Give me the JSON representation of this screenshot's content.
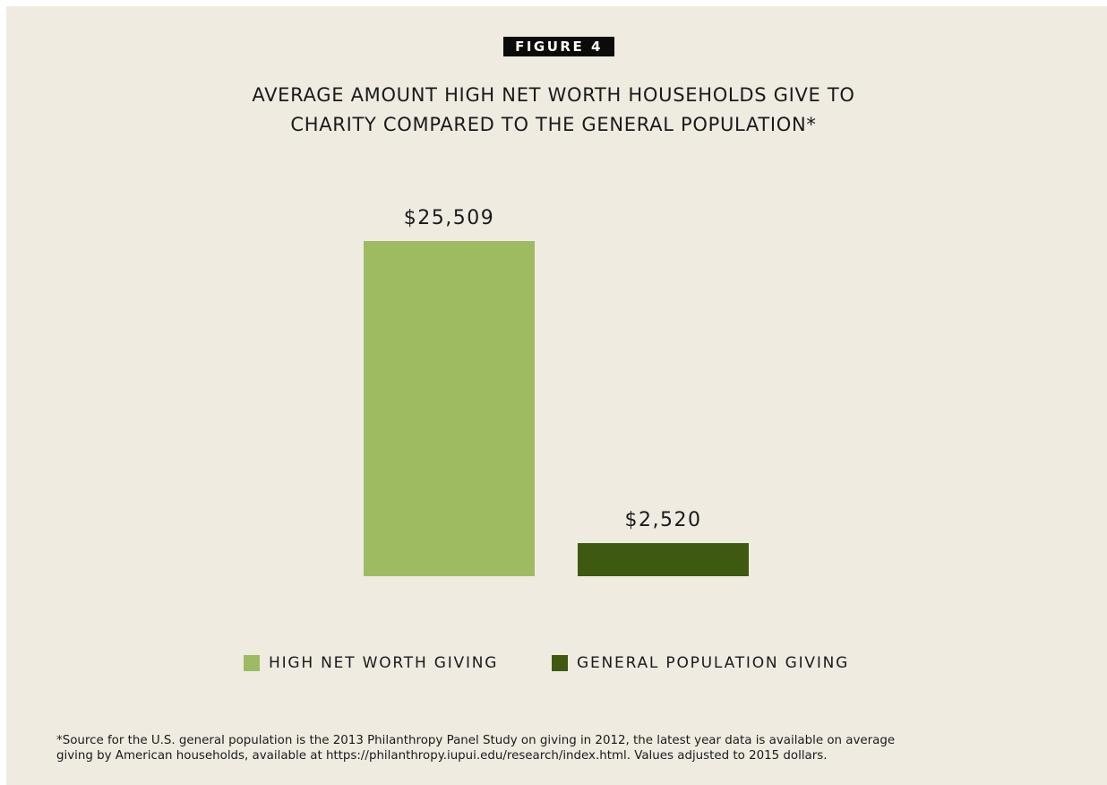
{
  "figure_label": "FIGURE 4",
  "title_lines": [
    "AVERAGE AMOUNT HIGH NET WORTH HOUSEHOLDS GIVE TO",
    "CHARITY COMPARED TO THE GENERAL POPULATION*"
  ],
  "footnote_lines": [
    "*Source for the U.S. general population is the 2013 Philanthropy Panel Study on giving in 2012, the latest year data is available on average",
    "giving by American households, available at https://philanthropy.iupui.edu/research/index.html. Values adjusted to 2015 dollars."
  ],
  "colors": {
    "background": "#efebe1",
    "high_net_worth": "#9fbb62",
    "general_population": "#3e5a10"
  },
  "chart_data": {
    "type": "bar",
    "title": "AVERAGE AMOUNT HIGH NET WORTH HOUSEHOLDS GIVE TO CHARITY COMPARED TO THE GENERAL POPULATION*",
    "categories": [
      "HIGH NET WORTH GIVING",
      "GENERAL POPULATION GIVING"
    ],
    "values": [
      25509,
      2520
    ],
    "data_labels": [
      "$25,509",
      "$2,520"
    ],
    "xlabel": "",
    "ylabel": "",
    "ylim": [
      0,
      25509
    ],
    "grid": false,
    "legend": "bottom",
    "series": [
      {
        "name": "HIGH NET WORTH GIVING",
        "color": "#9fbb62",
        "value": 25509,
        "label": "$25,509"
      },
      {
        "name": "GENERAL POPULATION GIVING",
        "color": "#3e5a10",
        "value": 2520,
        "label": "$2,520"
      }
    ]
  }
}
